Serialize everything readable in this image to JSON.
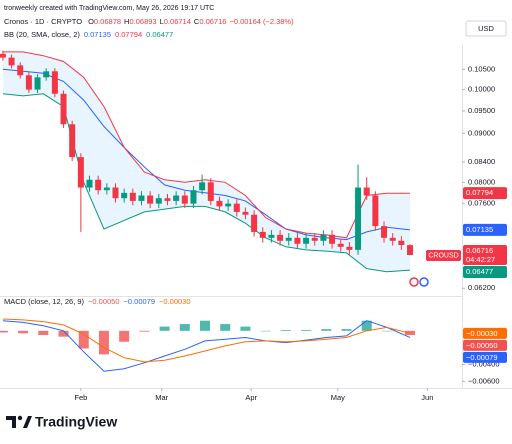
{
  "header": "tronweekly created with TradingView.com, May 26, 2026 19:17 UTC",
  "brand": "TradingView",
  "currency": "USD",
  "chart_data": [
    {
      "type": "candlestick",
      "title": "Cronos · 1D · CRYPTO",
      "legend_keys": [
        "O",
        "H",
        "L",
        "C"
      ],
      "change": {
        "value": -0.00164,
        "label": "−0.00164"
      },
      "change_pct": {
        "value": -2.38,
        "label": "(−2.38%)"
      },
      "symbol_tag": "CROUSD",
      "countdown": "04:42:27",
      "x": [
        5,
        8,
        11,
        14,
        17,
        20,
        23,
        26,
        29,
        32,
        35,
        38,
        41,
        44,
        47,
        50,
        53,
        56,
        59,
        62,
        65,
        68,
        71,
        74,
        77,
        80,
        83,
        86,
        89,
        92,
        95,
        98,
        101,
        104,
        107,
        110,
        113,
        116,
        119,
        122,
        125,
        128,
        131,
        134,
        137,
        140,
        143,
        146
      ],
      "open": [
        0.109,
        0.108,
        0.106,
        0.1035,
        0.1,
        0.103,
        0.1045,
        0.099,
        0.092,
        0.085,
        0.079,
        0.0805,
        0.0785,
        0.079,
        0.077,
        0.078,
        0.0765,
        0.0775,
        0.076,
        0.077,
        0.0765,
        0.0775,
        0.076,
        0.0785,
        0.08,
        0.0765,
        0.0755,
        0.076,
        0.0745,
        0.074,
        0.071,
        0.07,
        0.0705,
        0.0695,
        0.07,
        0.069,
        0.07,
        0.0695,
        0.0705,
        0.069,
        0.0685,
        0.068,
        0.079,
        0.0775,
        0.072,
        0.07,
        0.0695,
        0.06878
      ],
      "high": [
        0.1098,
        0.1088,
        0.1068,
        0.1043,
        0.1038,
        0.1053,
        0.1053,
        0.0998,
        0.0928,
        0.0858,
        0.0813,
        0.0813,
        0.0798,
        0.0798,
        0.0788,
        0.0788,
        0.0783,
        0.0783,
        0.0778,
        0.0778,
        0.0783,
        0.0783,
        0.0793,
        0.0815,
        0.0808,
        0.0773,
        0.0768,
        0.0768,
        0.0753,
        0.0748,
        0.0718,
        0.0713,
        0.0713,
        0.0708,
        0.0708,
        0.0708,
        0.0708,
        0.0713,
        0.0713,
        0.0698,
        0.0693,
        0.0835,
        0.081,
        0.0783,
        0.0728,
        0.0708,
        0.0703,
        0.06893
      ],
      "low": [
        0.1072,
        0.1052,
        0.1027,
        0.0992,
        0.0992,
        0.1022,
        0.0982,
        0.0912,
        0.0842,
        0.071,
        0.0782,
        0.0777,
        0.0777,
        0.0762,
        0.0762,
        0.0757,
        0.0757,
        0.0752,
        0.0752,
        0.0757,
        0.0757,
        0.0752,
        0.0752,
        0.0777,
        0.0757,
        0.0747,
        0.0747,
        0.0737,
        0.0732,
        0.0702,
        0.0692,
        0.0692,
        0.0687,
        0.0687,
        0.0682,
        0.0682,
        0.0687,
        0.0687,
        0.0682,
        0.0677,
        0.0672,
        0.0672,
        0.0767,
        0.0712,
        0.0692,
        0.0687,
        0.068,
        0.06714
      ],
      "close": [
        0.108,
        0.106,
        0.1035,
        0.1,
        0.103,
        0.1045,
        0.099,
        0.092,
        0.085,
        0.079,
        0.0805,
        0.0785,
        0.079,
        0.077,
        0.078,
        0.0765,
        0.0775,
        0.076,
        0.077,
        0.0765,
        0.0775,
        0.076,
        0.0785,
        0.08,
        0.0765,
        0.0755,
        0.076,
        0.0745,
        0.074,
        0.071,
        0.07,
        0.0705,
        0.0695,
        0.07,
        0.069,
        0.07,
        0.0695,
        0.0705,
        0.069,
        0.0685,
        0.068,
        0.079,
        0.0775,
        0.072,
        0.07,
        0.0695,
        0.0688,
        0.06716
      ],
      "up_color": "#089981",
      "down_color": "#f23645",
      "overlay": {
        "name": "BB (20, SMA, close, 2)",
        "fill": "rgba(33,150,243,0.1)",
        "x": [
          5,
          12,
          19,
          26,
          33,
          40,
          47,
          54,
          61,
          68,
          75,
          82,
          89,
          96,
          103,
          110,
          117,
          124,
          131,
          138,
          146
        ],
        "series": [
          {
            "color": "#2962ff",
            "values": [
              0.105,
              0.1045,
              0.104,
              0.102,
              0.0975,
              0.0915,
              0.087,
              0.083,
              0.0795,
              0.0785,
              0.078,
              0.0775,
              0.0765,
              0.074,
              0.0715,
              0.0705,
              0.07,
              0.0697,
              0.071,
              0.0718,
              0.07135
            ]
          },
          {
            "color": "#f23645",
            "values": [
              0.1095,
              0.1095,
              0.1085,
              0.107,
              0.103,
              0.096,
              0.087,
              0.082,
              0.0805,
              0.08,
              0.0805,
              0.08,
              0.0775,
              0.0735,
              0.0715,
              0.0708,
              0.0705,
              0.07,
              0.0775,
              0.07794,
              0.07794
            ]
          },
          {
            "color": "#089981",
            "values": [
              0.099,
              0.0985,
              0.099,
              0.096,
              0.08,
              0.0715,
              0.073,
              0.0745,
              0.075,
              0.0755,
              0.0755,
              0.0745,
              0.0725,
              0.07,
              0.0685,
              0.068,
              0.0678,
              0.0675,
              0.065,
              0.0645,
              0.06477
            ]
          }
        ]
      },
      "log_scale": true,
      "ylim": [
        0.061,
        0.11
      ],
      "yticks": [
        {
          "value": 0.105,
          "label": "0.10500"
        },
        {
          "value": 0.1,
          "label": "0.10000"
        },
        {
          "value": 0.095,
          "label": "0.09500"
        },
        {
          "value": 0.09,
          "label": "0.09000"
        },
        {
          "value": 0.084,
          "label": "0.08400"
        },
        {
          "value": 0.08,
          "label": "0.08000"
        },
        {
          "value": 0.076,
          "label": "0.07600"
        },
        {
          "value": 0.062,
          "label": "0.06200"
        }
      ],
      "xlim": [
        4,
        164
      ],
      "xticks": [
        {
          "value": 32,
          "label": "Feb"
        },
        {
          "value": 60,
          "label": "Mar"
        },
        {
          "value": 91,
          "label": "Apr"
        },
        {
          "value": 121,
          "label": "May"
        },
        {
          "value": 152,
          "label": "Jun"
        }
      ]
    },
    {
      "type": "macd",
      "title": "MACD (close, 12, 26, 9)",
      "x": [
        5,
        12,
        19,
        26,
        33,
        40,
        47,
        54,
        61,
        68,
        75,
        82,
        89,
        96,
        103,
        110,
        117,
        124,
        131,
        138,
        146
      ],
      "histogram": {
        "up_color": "#26a69a",
        "down_color": "#ef5350",
        "last_label": "−0.00050",
        "values": [
          -0.0002,
          -0.0003,
          -0.0005,
          -0.0007,
          -0.0021,
          -0.0028,
          -0.0013,
          -0.0001,
          0.0005,
          0.0008,
          0.0012,
          0.0008,
          0.0005,
          0.0,
          0.0001,
          0.0001,
          0.0002,
          0.0002,
          0.0012,
          0.0,
          -0.0005
        ]
      },
      "series": [
        {
          "color": "#2962ff",
          "last_label": "−0.00079",
          "values": [
            0.0012,
            0.001,
            0.0006,
            0.0,
            -0.0025,
            -0.0048,
            -0.0045,
            -0.0038,
            -0.003,
            -0.0022,
            -0.0012,
            -0.001,
            -0.0008,
            -0.0012,
            -0.0014,
            -0.0011,
            -0.0008,
            -0.0006,
            0.0012,
            0.0004,
            -0.00079
          ]
        },
        {
          "color": "#ff6d00",
          "last_label": "−0.00030",
          "values": [
            0.0014,
            0.0013,
            0.0011,
            0.0007,
            -0.0004,
            -0.002,
            -0.0032,
            -0.0037,
            -0.0035,
            -0.003,
            -0.0024,
            -0.0018,
            -0.0013,
            -0.0012,
            -0.0013,
            -0.0012,
            -0.001,
            -0.0008,
            0.0,
            0.0004,
            -0.0003
          ]
        }
      ],
      "ylim": [
        -0.0068,
        0.0039
      ],
      "yticks": [
        {
          "value": -0.004,
          "label": "−0.00400"
        },
        {
          "value": -0.006,
          "label": "−0.00600"
        }
      ]
    }
  ]
}
